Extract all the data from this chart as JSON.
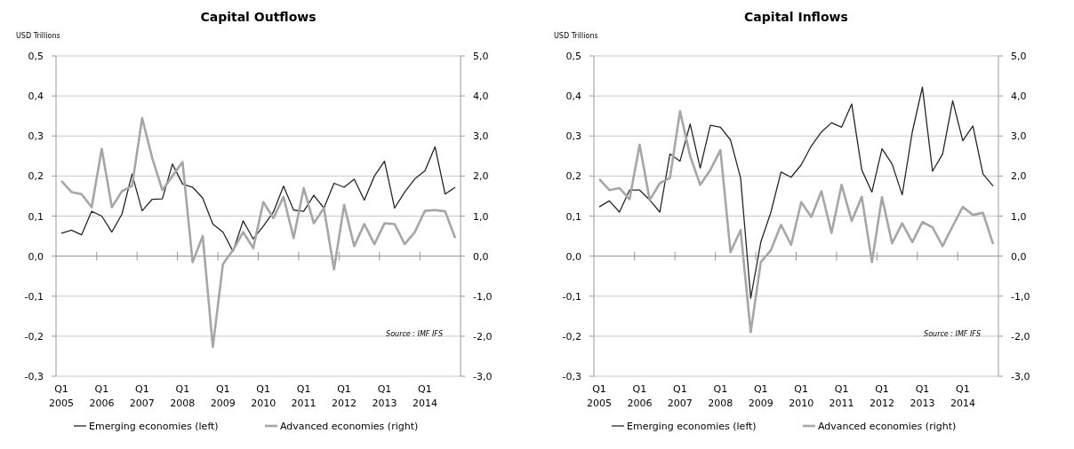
{
  "chart_data": [
    {
      "type": "line",
      "title": "Capital Outflows",
      "ylabel": "USD Trillions",
      "categories": [
        "Q1 2005",
        null,
        null,
        null,
        "Q1 2006",
        null,
        null,
        null,
        "Q1 2007",
        null,
        null,
        null,
        "Q1 2008",
        null,
        null,
        null,
        "Q1 2009",
        null,
        null,
        null,
        "Q1 2010",
        null,
        null,
        null,
        "Q1 2011",
        null,
        null,
        null,
        "Q1 2012",
        null,
        null,
        null,
        "Q1 2013",
        null,
        null,
        null,
        "Q1 2014",
        null,
        null,
        null
      ],
      "series": [
        {
          "name": "Emerging economies (left)",
          "color": "#262626",
          "values": [
            0.057,
            0.065,
            0.053,
            0.112,
            0.1,
            0.06,
            0.105,
            0.205,
            0.113,
            0.142,
            0.143,
            0.23,
            0.18,
            0.172,
            0.145,
            0.08,
            0.06,
            0.012,
            0.088,
            0.043,
            0.075,
            0.11,
            0.175,
            0.115,
            0.112,
            0.152,
            0.12,
            0.182,
            0.172,
            0.192,
            0.14,
            0.2,
            0.237,
            0.12,
            0.16,
            0.193,
            0.213,
            0.273,
            0.155,
            0.172
          ]
        },
        {
          "name": "Advanced economies (right)",
          "color": "#a6a6a6",
          "axis": "y2",
          "values": [
            1.88,
            1.6,
            1.55,
            1.22,
            2.68,
            1.22,
            1.62,
            1.75,
            3.45,
            2.45,
            1.65,
            2.0,
            2.35,
            -0.15,
            0.5,
            -2.27,
            -0.2,
            0.15,
            0.6,
            0.2,
            1.35,
            0.95,
            1.48,
            0.45,
            1.7,
            0.82,
            1.2,
            -0.33,
            1.28,
            0.25,
            0.8,
            0.3,
            0.82,
            0.8,
            0.3,
            0.6,
            1.13,
            1.15,
            1.12,
            0.45
          ]
        }
      ],
      "ylim": [
        -0.3,
        0.5
      ],
      "yticks": [
        {
          "value": -0.3,
          "label": "-0,3"
        },
        {
          "value": -0.2,
          "label": "-0,2"
        },
        {
          "value": -0.1,
          "label": "-0,1"
        },
        {
          "value": 0,
          "label": "0,0"
        },
        {
          "value": 0.1,
          "label": "0,1"
        },
        {
          "value": 0.2,
          "label": "0,2"
        },
        {
          "value": 0.3,
          "label": "0,3"
        },
        {
          "value": 0.4,
          "label": "0,4"
        },
        {
          "value": 0.5,
          "label": "0,5"
        }
      ],
      "y2lim": [
        -3,
        5
      ],
      "y2ticks": [
        {
          "value": -3,
          "label": "-3,0"
        },
        {
          "value": -2,
          "label": "-2,0"
        },
        {
          "value": -1,
          "label": "-1,0"
        },
        {
          "value": 0,
          "label": "0,0"
        },
        {
          "value": 1,
          "label": "1,0"
        },
        {
          "value": 2,
          "label": "2,0"
        },
        {
          "value": 3,
          "label": "3,0"
        },
        {
          "value": 4,
          "label": "4,0"
        },
        {
          "value": 5,
          "label": "5,0"
        }
      ],
      "grid": "y",
      "legend": "bottom",
      "annotations": [
        "Source : IMF IFS"
      ]
    },
    {
      "type": "line",
      "title": "Capital Inflows",
      "ylabel": "USD Trillions",
      "categories": [
        "Q1 2005",
        null,
        null,
        null,
        "Q1 2006",
        null,
        null,
        null,
        "Q1 2007",
        null,
        null,
        null,
        "Q1 2008",
        null,
        null,
        null,
        "Q1 2009",
        null,
        null,
        null,
        "Q1 2010",
        null,
        null,
        null,
        "Q1 2011",
        null,
        null,
        null,
        "Q1 2012",
        null,
        null,
        null,
        "Q1 2013",
        null,
        null,
        null,
        "Q1 2014",
        null,
        null,
        null
      ],
      "series": [
        {
          "name": "Emerging economies (left)",
          "color": "#262626",
          "values": [
            0.123,
            0.138,
            0.11,
            0.165,
            0.165,
            0.14,
            0.11,
            0.255,
            0.237,
            0.33,
            0.22,
            0.327,
            0.322,
            0.29,
            0.195,
            -0.105,
            0.035,
            0.11,
            0.21,
            0.197,
            0.228,
            0.275,
            0.31,
            0.333,
            0.322,
            0.38,
            0.215,
            0.16,
            0.268,
            0.23,
            0.153,
            0.31,
            0.422,
            0.212,
            0.255,
            0.388,
            0.288,
            0.325,
            0.205,
            0.175
          ]
        },
        {
          "name": "Advanced economies (right)",
          "color": "#a6a6a6",
          "axis": "y2",
          "values": [
            1.92,
            1.65,
            1.7,
            1.42,
            2.78,
            1.4,
            1.82,
            1.95,
            3.62,
            2.5,
            1.78,
            2.15,
            2.65,
            0.1,
            0.65,
            -1.9,
            -0.15,
            0.15,
            0.78,
            0.28,
            1.35,
            0.98,
            1.62,
            0.58,
            1.78,
            0.88,
            1.48,
            -0.15,
            1.47,
            0.32,
            0.82,
            0.35,
            0.85,
            0.72,
            0.25,
            0.75,
            1.23,
            1.03,
            1.08,
            0.3
          ]
        }
      ],
      "ylim": [
        -0.3,
        0.5
      ],
      "yticks": [
        {
          "value": -0.3,
          "label": "-0,3"
        },
        {
          "value": -0.2,
          "label": "-0,2"
        },
        {
          "value": -0.1,
          "label": "-0,1"
        },
        {
          "value": 0,
          "label": "0,0"
        },
        {
          "value": 0.1,
          "label": "0,1"
        },
        {
          "value": 0.2,
          "label": "0,2"
        },
        {
          "value": 0.3,
          "label": "0,3"
        },
        {
          "value": 0.4,
          "label": "0,4"
        },
        {
          "value": 0.5,
          "label": "0,5"
        }
      ],
      "y2lim": [
        -3,
        5
      ],
      "y2ticks": [
        {
          "value": -3,
          "label": "-3,0"
        },
        {
          "value": -2,
          "label": "-2,0"
        },
        {
          "value": -1,
          "label": "-1,0"
        },
        {
          "value": 0,
          "label": "0,0"
        },
        {
          "value": 1,
          "label": "1,0"
        },
        {
          "value": 2,
          "label": "2,0"
        },
        {
          "value": 3,
          "label": "3,0"
        },
        {
          "value": 4,
          "label": "4,0"
        },
        {
          "value": 5,
          "label": "5,0"
        }
      ],
      "grid": "y",
      "legend": "bottom",
      "annotations": [
        "Source : IMF IFS"
      ]
    }
  ]
}
